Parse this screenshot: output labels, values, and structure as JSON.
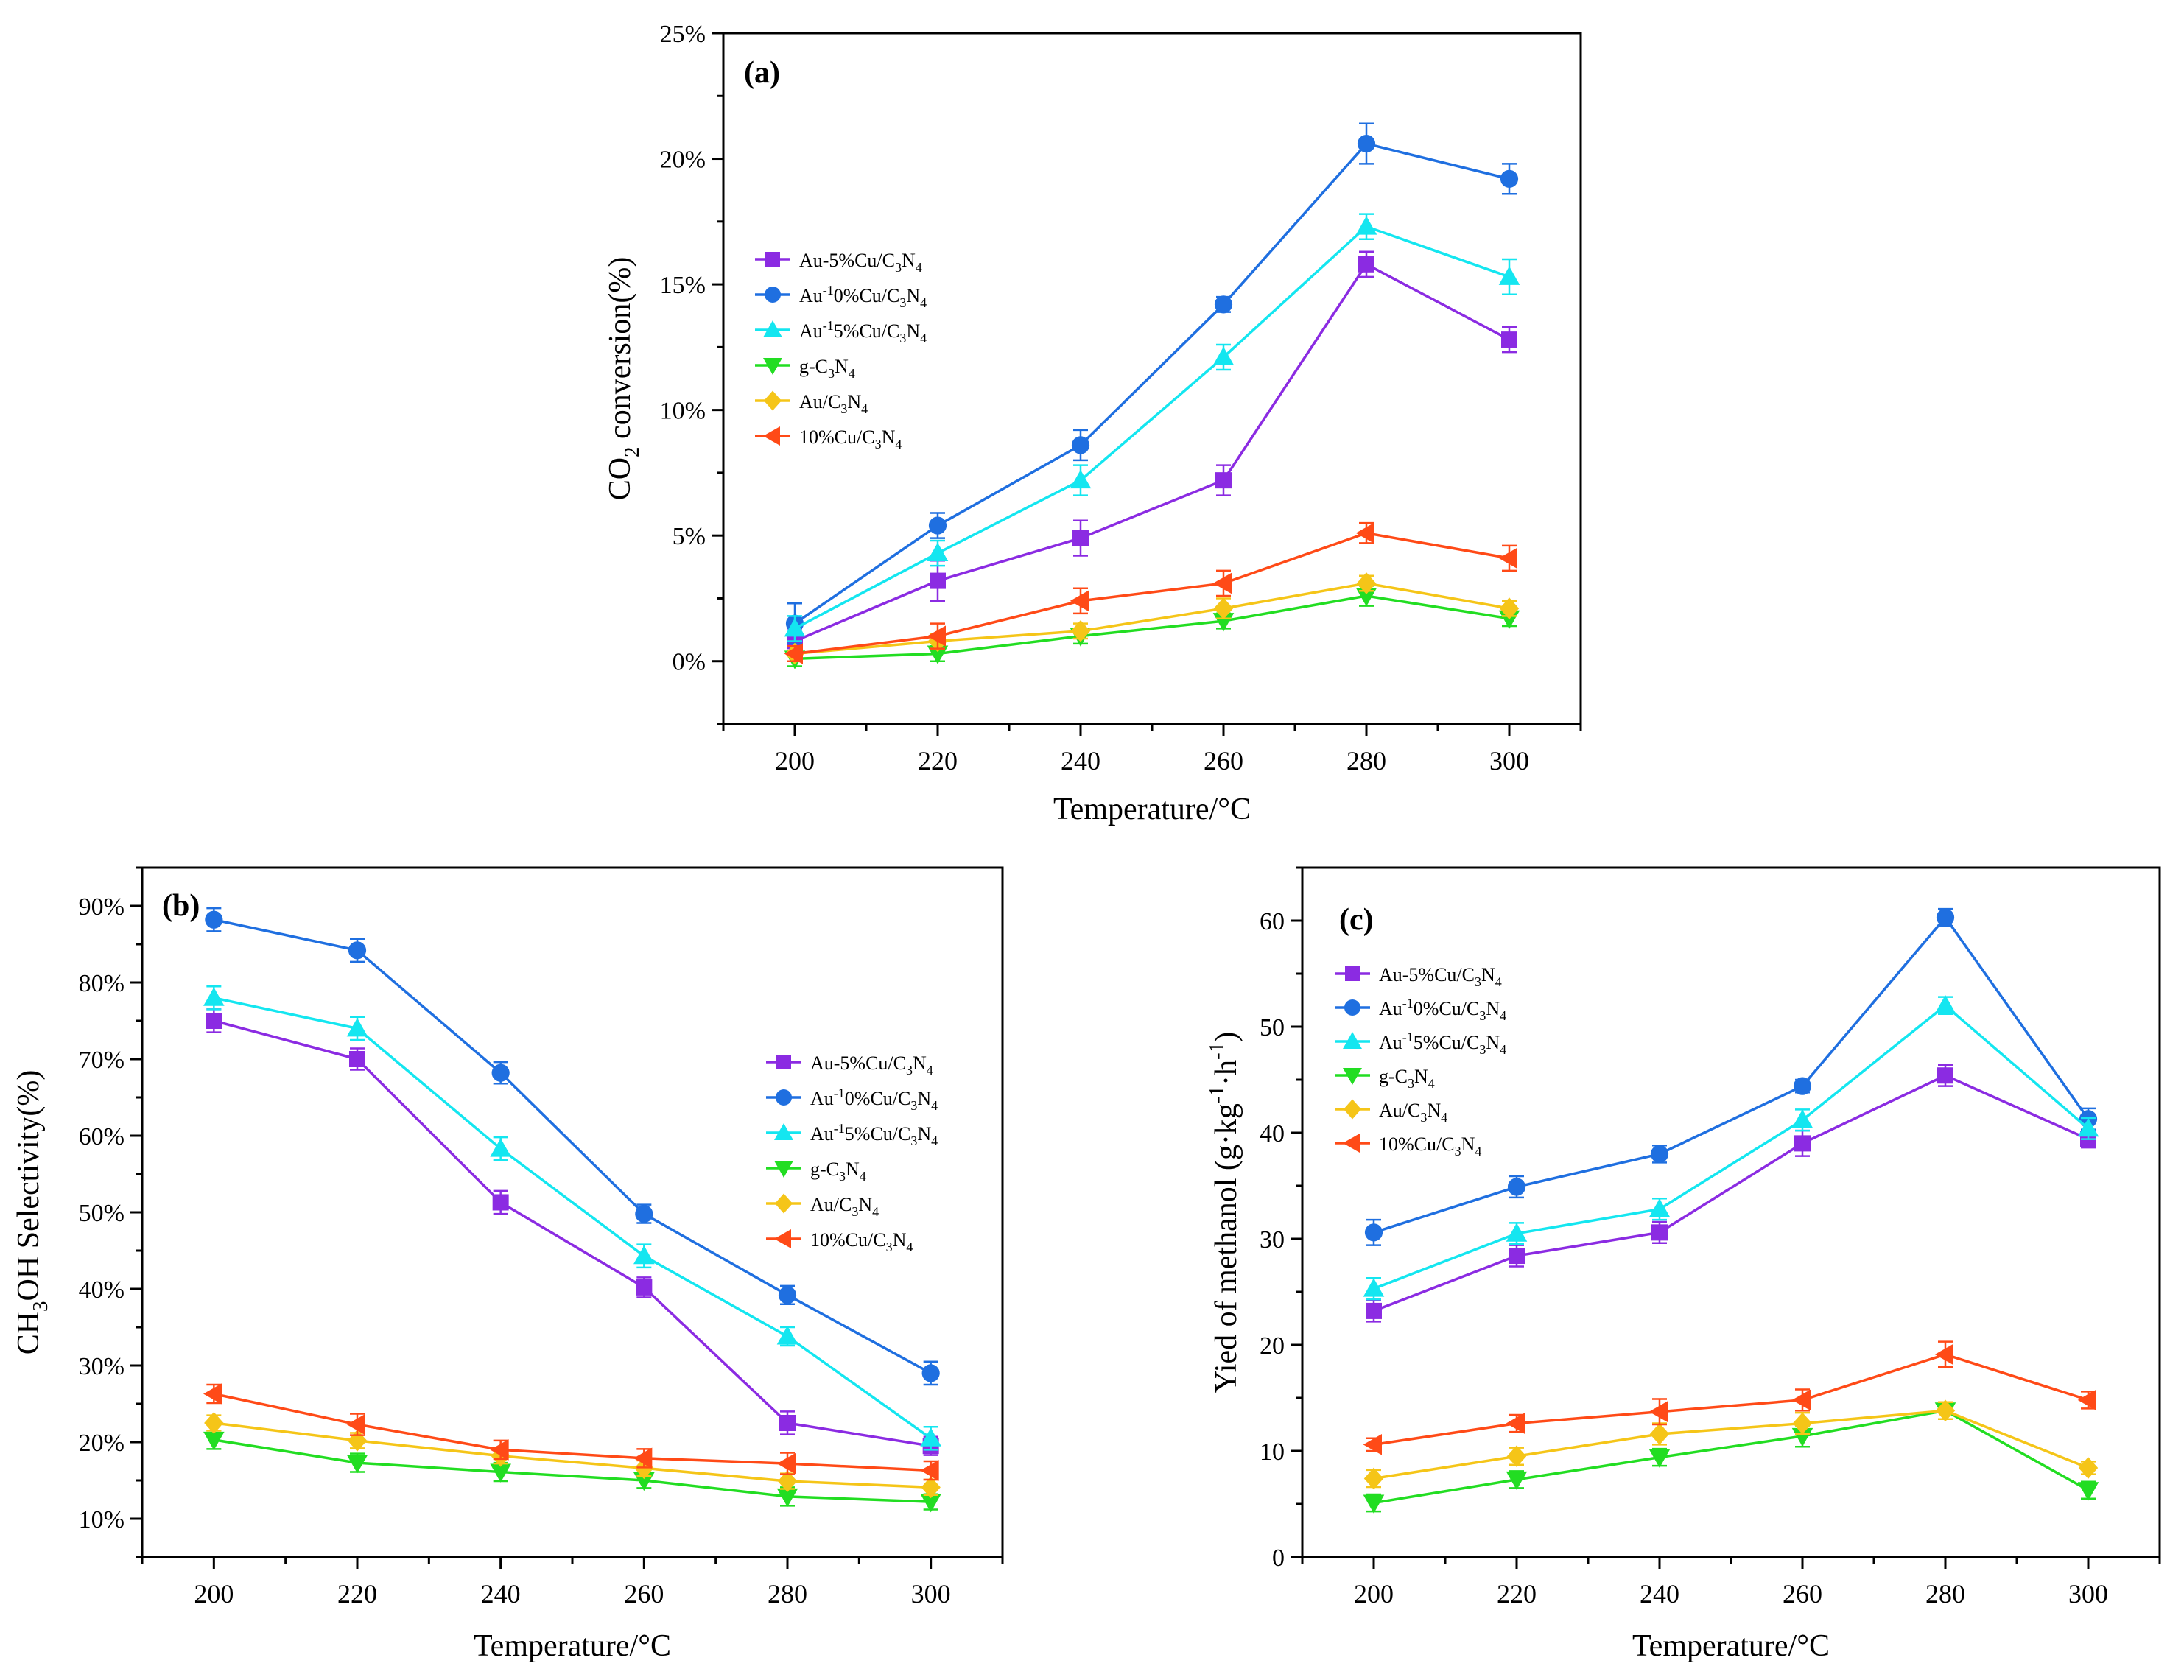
{
  "x_ticks": [
    "200",
    "220",
    "240",
    "260",
    "280",
    "300"
  ],
  "series_styles": [
    {
      "name": "Au-5%Cu/C3N4",
      "color": "#8b2be2",
      "marker": "square"
    },
    {
      "name": "Au-10%Cu/C3N4",
      "color": "#1f6fe0",
      "marker": "circle"
    },
    {
      "name": "Au-15%Cu/C3N4",
      "color": "#14e6f0",
      "marker": "triangle-up"
    },
    {
      "name": "g-C3N4",
      "color": "#22dd22",
      "marker": "triangle-down"
    },
    {
      "name": "Au/C3N4",
      "color": "#f5c518",
      "marker": "diamond"
    },
    {
      "name": "10%Cu/C3N4",
      "color": "#ff4a17",
      "marker": "triangle-left"
    }
  ],
  "chart_data": [
    {
      "type": "line",
      "panel_label": "(a)",
      "x": [
        200,
        220,
        240,
        260,
        280,
        300
      ],
      "xlabel": "Temperature/°C",
      "ylabel": "CO2 conversion(%)",
      "ylim": [
        -2.5,
        25
      ],
      "yticks": [
        "0%",
        "5%",
        "10%",
        "15%",
        "20%",
        "25%"
      ],
      "legend_position": "left-middle",
      "series": [
        {
          "name": "Au-5%Cu/C3N4",
          "values": [
            0.8,
            3.2,
            4.9,
            7.2,
            15.8,
            12.8
          ],
          "errors": [
            0.5,
            0.8,
            0.7,
            0.6,
            0.5,
            0.5
          ]
        },
        {
          "name": "Au-10%Cu/C3N4",
          "values": [
            1.5,
            5.4,
            8.6,
            14.2,
            20.6,
            19.2
          ],
          "errors": [
            0.8,
            0.5,
            0.6,
            0.3,
            0.8,
            0.6
          ]
        },
        {
          "name": "Au-15%Cu/C3N4",
          "values": [
            1.3,
            4.3,
            7.2,
            12.1,
            17.3,
            15.3
          ],
          "errors": [
            0.5,
            0.5,
            0.6,
            0.5,
            0.5,
            0.7
          ]
        },
        {
          "name": "g-C3N4",
          "values": [
            0.1,
            0.3,
            1.0,
            1.6,
            2.6,
            1.7
          ],
          "errors": [
            0.3,
            0.3,
            0.3,
            0.3,
            0.4,
            0.3
          ]
        },
        {
          "name": "Au/C3N4",
          "values": [
            0.3,
            0.8,
            1.2,
            2.1,
            3.1,
            2.1
          ],
          "errors": [
            0.3,
            0.3,
            0.3,
            0.4,
            0.3,
            0.3
          ]
        },
        {
          "name": "10%Cu/C3N4",
          "values": [
            0.3,
            1.0,
            2.4,
            3.1,
            5.1,
            4.1
          ],
          "errors": [
            0.3,
            0.5,
            0.5,
            0.5,
            0.4,
            0.5
          ]
        }
      ]
    },
    {
      "type": "line",
      "panel_label": "(b)",
      "x": [
        200,
        220,
        240,
        260,
        280,
        300
      ],
      "xlabel": "Temperature/°C",
      "ylabel": "CH3OH Selectivity(%)",
      "ylim": [
        5,
        95
      ],
      "yticks": [
        "10%",
        "20%",
        "30%",
        "40%",
        "50%",
        "60%",
        "70%",
        "80%",
        "90%"
      ],
      "legend_position": "right-middle",
      "series": [
        {
          "name": "Au-5%Cu/C3N4",
          "values": [
            75.0,
            70.0,
            51.3,
            40.2,
            22.5,
            19.5
          ],
          "errors": [
            1.5,
            1.4,
            1.5,
            1.3,
            1.5,
            1.2
          ]
        },
        {
          "name": "Au-10%Cu/C3N4",
          "values": [
            88.2,
            84.2,
            68.2,
            49.8,
            39.2,
            29.0
          ],
          "errors": [
            1.5,
            1.5,
            1.4,
            1.2,
            1.2,
            1.5
          ]
        },
        {
          "name": "Au-15%Cu/C3N4",
          "values": [
            78.0,
            74.0,
            58.3,
            44.3,
            33.8,
            20.5
          ],
          "errors": [
            1.5,
            1.5,
            1.5,
            1.5,
            1.2,
            1.5
          ]
        },
        {
          "name": "g-C3N4",
          "values": [
            20.3,
            17.3,
            16.1,
            15.0,
            12.9,
            12.2
          ],
          "errors": [
            1.2,
            1.2,
            1.2,
            1.0,
            1.2,
            1.0
          ]
        },
        {
          "name": "Au/C3N4",
          "values": [
            22.5,
            20.2,
            18.2,
            16.6,
            14.9,
            14.1
          ],
          "errors": [
            1.0,
            1.0,
            1.0,
            1.0,
            1.0,
            1.0
          ]
        },
        {
          "name": "10%Cu/C3N4",
          "values": [
            26.3,
            22.3,
            19.0,
            17.9,
            17.2,
            16.3
          ],
          "errors": [
            1.2,
            1.4,
            1.2,
            1.2,
            1.4,
            1.2
          ]
        }
      ]
    },
    {
      "type": "line",
      "panel_label": "(c)",
      "x": [
        200,
        220,
        240,
        260,
        280,
        300
      ],
      "xlabel": "Temperature/°C",
      "ylabel": "Yied of methanol (g·kg-1·h-1)",
      "ylim": [
        0,
        65
      ],
      "yticks": [
        "0",
        "10",
        "20",
        "30",
        "40",
        "50",
        "60"
      ],
      "legend_position": "left-upper",
      "series": [
        {
          "name": "Au-5%Cu/C3N4",
          "values": [
            23.2,
            28.4,
            30.6,
            39.0,
            45.4,
            39.4
          ],
          "errors": [
            1.0,
            1.0,
            1.0,
            1.2,
            1.0,
            0.8
          ]
        },
        {
          "name": "Au-10%Cu/C3N4",
          "values": [
            30.6,
            34.9,
            38.0,
            44.4,
            60.3,
            41.3
          ],
          "errors": [
            1.2,
            1.0,
            0.8,
            0.6,
            0.8,
            1.0
          ]
        },
        {
          "name": "Au-15%Cu/C3N4",
          "values": [
            25.3,
            30.5,
            32.8,
            41.2,
            52.0,
            40.4
          ],
          "errors": [
            1.0,
            1.0,
            1.0,
            1.0,
            0.8,
            1.0
          ]
        },
        {
          "name": "g-C3N4",
          "values": [
            5.1,
            7.3,
            9.4,
            11.4,
            13.8,
            6.3
          ],
          "errors": [
            0.8,
            0.8,
            0.8,
            1.0,
            0.8,
            0.8
          ]
        },
        {
          "name": "Au/C3N4",
          "values": [
            7.4,
            9.5,
            11.6,
            12.6,
            13.8,
            8.4
          ],
          "errors": [
            0.8,
            0.8,
            1.0,
            1.0,
            0.8,
            0.6
          ]
        },
        {
          "name": "10%Cu/C3N4",
          "values": [
            10.6,
            12.6,
            13.7,
            14.8,
            19.1,
            14.8
          ],
          "errors": [
            0.6,
            0.8,
            1.2,
            1.0,
            1.2,
            0.8
          ]
        }
      ]
    }
  ]
}
